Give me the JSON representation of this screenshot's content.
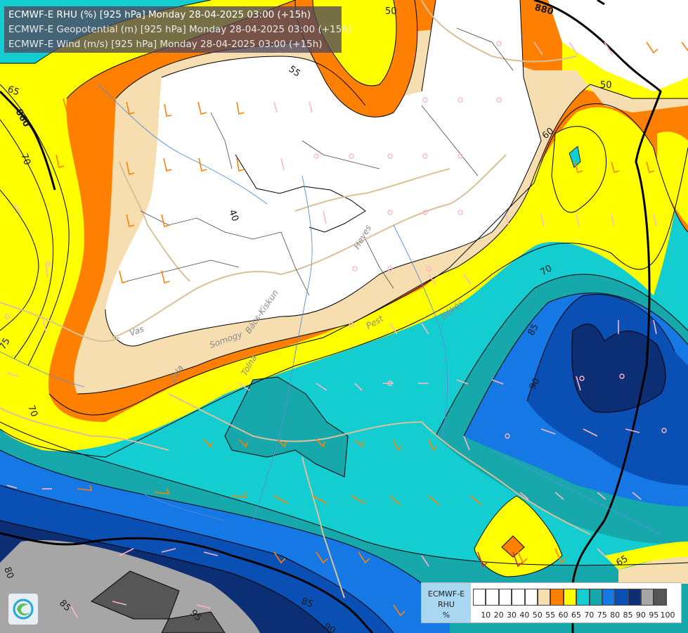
{
  "header": {
    "line1": "ECMWF-E RHU (%) [925 hPa] Monday 28-04-2025 03:00 (+15h)",
    "line2": "ECMWF-E Geopotential (m) [925 hPa] Monday 28-04-2025 03:00 (+15h)",
    "line3": "ECMWF-E Wind (m/s) [925 hPa] Monday 28-04-2025 03:00 (+15h)"
  },
  "legend": {
    "model": "ECMWF-E",
    "variable": "RHU",
    "unit": "%",
    "ticks": [
      "10",
      "20",
      "30",
      "40",
      "50",
      "55",
      "60",
      "65",
      "70",
      "75",
      "80",
      "85",
      "90",
      "95",
      "100"
    ],
    "colors": [
      "#ffffff",
      "#ffffff",
      "#ffffff",
      "#ffffff",
      "#ffffff",
      "#f6deb0",
      "#ff8000",
      "#ffff00",
      "#14cdd0",
      "#16a8aa",
      "#1578e4",
      "#0a4fb3",
      "#0b2e75",
      "#a6a6a6",
      "#565656"
    ]
  },
  "geopotential_labels": [
    "880",
    "860",
    "860"
  ],
  "rhu_labels": [
    "50",
    "55",
    "50",
    "60",
    "65",
    "70",
    "40",
    "75",
    "85",
    "90",
    "70",
    "80",
    "85",
    "95",
    "90",
    "85",
    "70",
    "65"
  ],
  "place_labels": [
    "Heves",
    "Békés",
    "Pest",
    "Vas",
    "Zala",
    "Somogy",
    "Tolna",
    "Bács-Kiskun"
  ],
  "logo": {
    "icon": "ecmwf-logo-icon"
  }
}
